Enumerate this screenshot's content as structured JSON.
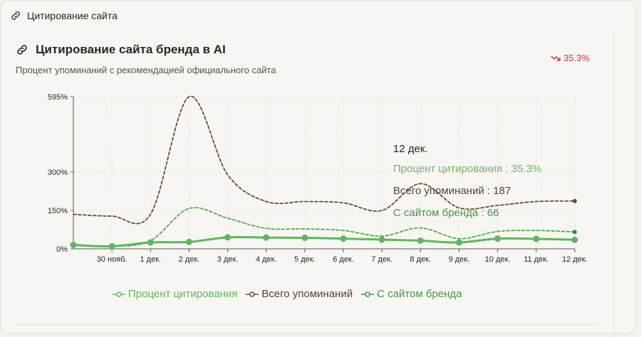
{
  "section": {
    "title": "Цитирование сайта",
    "icon": "link-icon"
  },
  "card": {
    "title": "Цитирование сайта бренда в AI",
    "subtitle": "Процент упоминаний с рекомендацией официального сайта",
    "trend_value": "35.3%",
    "trend_icon": "trend-down-icon"
  },
  "tooltip": {
    "date": "12 дек.",
    "rows": [
      {
        "label": "Процент цитирования",
        "value": "35.3%",
        "color": "#6fb56b"
      },
      {
        "label": "Всего упоминаний",
        "value": "187",
        "color": "#5c4033"
      },
      {
        "label": "С сайтом бренда",
        "value": "66",
        "color": "#3f9a44"
      }
    ]
  },
  "colors": {
    "citation": "#5cb85c",
    "total": "#6b4a3a",
    "brand": "#4caf50",
    "trend": "#b6403a"
  },
  "chart_data": {
    "type": "line",
    "categories": [
      "",
      "30 нояб.",
      "1 дек.",
      "2 дек.",
      "3 дек.",
      "4 дек.",
      "5 дек.",
      "6 дек.",
      "7 дек.",
      "8 дек.",
      "9 дек.",
      "10 дек.",
      "11 дек.",
      "12 дек."
    ],
    "y_ticks": [
      "0%",
      "150%",
      "300%",
      "595%"
    ],
    "ylim": [
      0,
      595
    ],
    "series": [
      {
        "name": "Процент цитирования",
        "style": "solid-markers",
        "values": [
          15,
          10,
          25,
          27,
          45,
          44,
          43,
          40,
          36,
          32,
          25,
          40,
          39,
          35.3
        ]
      },
      {
        "name": "Всего упоминаний",
        "style": "dashed",
        "values": [
          135,
          128,
          135,
          595,
          290,
          185,
          185,
          180,
          150,
          255,
          160,
          170,
          185,
          187
        ]
      },
      {
        "name": "С сайтом бренда",
        "style": "dashed",
        "values": [
          18,
          10,
          32,
          158,
          120,
          80,
          78,
          72,
          50,
          82,
          40,
          68,
          72,
          66
        ]
      }
    ]
  },
  "legend": [
    {
      "label": "Процент цитирования",
      "color": "#5cb85c"
    },
    {
      "label": "Всего упоминаний",
      "color": "#6b4a3a"
    },
    {
      "label": "С сайтом бренда",
      "color": "#3f9a44"
    }
  ]
}
